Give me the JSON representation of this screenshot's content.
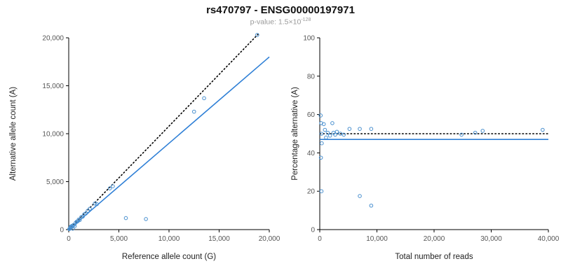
{
  "header": {
    "title": "rs470797 - ENSG00000197971",
    "subtitle_prefix": "p-value: 1.5×10",
    "subtitle_exponent": "-128"
  },
  "style": {
    "point_color": "#4a90cf",
    "trend_color": "#2e7fd6",
    "dotted_color": "#000000",
    "axis_color": "#000000",
    "tick_label_color": "#555555"
  },
  "chart_data": [
    {
      "type": "scatter",
      "name": "alt-vs-ref-allele-count",
      "xlabel": "Reference allele count (G)",
      "ylabel": "Alternative allele count (A)",
      "xlim": [
        0,
        20000
      ],
      "ylim": [
        0,
        20000
      ],
      "xticks": [
        0,
        5000,
        10000,
        15000,
        20000
      ],
      "yticks": [
        0,
        5000,
        10000,
        15000,
        20000
      ],
      "grid": false,
      "points": [
        [
          60,
          60
        ],
        [
          100,
          110
        ],
        [
          150,
          140
        ],
        [
          200,
          300
        ],
        [
          250,
          240
        ],
        [
          300,
          375
        ],
        [
          350,
          330
        ],
        [
          400,
          100
        ],
        [
          450,
          460
        ],
        [
          500,
          480
        ],
        [
          600,
          360
        ],
        [
          700,
          720
        ],
        [
          800,
          830
        ],
        [
          900,
          870
        ],
        [
          1000,
          1050
        ],
        [
          1100,
          1000
        ],
        [
          1250,
          1300
        ],
        [
          1400,
          1360
        ],
        [
          1550,
          1600
        ],
        [
          1700,
          1680
        ],
        [
          1900,
          1970
        ],
        [
          2100,
          2180
        ],
        [
          2600,
          2720
        ],
        [
          2800,
          2650
        ],
        [
          4100,
          4300
        ],
        [
          4400,
          4520
        ],
        [
          5700,
          1200
        ],
        [
          7700,
          1100
        ],
        [
          12500,
          12300
        ],
        [
          13500,
          13700
        ],
        [
          18800,
          20300
        ]
      ],
      "lines": [
        {
          "name": "identity-dotted-line",
          "x1": 0,
          "y1": 0,
          "x2": 19000,
          "y2": 20500,
          "style": "dotted",
          "color": "#000000"
        },
        {
          "name": "regression-line",
          "x1": 0,
          "y1": 0,
          "x2": 20000,
          "y2": 18000,
          "style": "solid",
          "color": "#2e7fd6"
        }
      ]
    },
    {
      "type": "scatter",
      "name": "percentage-vs-total-reads",
      "xlabel": "Total number of reads",
      "ylabel": "Percentage alternative (A)",
      "xlim": [
        0,
        40000
      ],
      "ylim": [
        0,
        100
      ],
      "xticks": [
        0,
        10000,
        20000,
        30000,
        40000
      ],
      "yticks": [
        0,
        20,
        40,
        60,
        80,
        100
      ],
      "grid": false,
      "points": [
        [
          150,
          59.5
        ],
        [
          250,
          55.5
        ],
        [
          300,
          50
        ],
        [
          350,
          45
        ],
        [
          200,
          37.5
        ],
        [
          300,
          20
        ],
        [
          700,
          55
        ],
        [
          900,
          52
        ],
        [
          1100,
          48
        ],
        [
          1400,
          50.5
        ],
        [
          1800,
          49
        ],
        [
          2200,
          55.5
        ],
        [
          2400,
          50.5
        ],
        [
          2700,
          49.5
        ],
        [
          3000,
          51
        ],
        [
          3600,
          50
        ],
        [
          4200,
          49.5
        ],
        [
          5200,
          52.5
        ],
        [
          7000,
          52.5
        ],
        [
          7000,
          17.5
        ],
        [
          9000,
          52.5
        ],
        [
          9000,
          12.5
        ],
        [
          24800,
          49.5
        ],
        [
          27200,
          50.5
        ],
        [
          28500,
          51.5
        ],
        [
          39000,
          52
        ]
      ],
      "lines": [
        {
          "name": "fifty-percent-dotted-line",
          "x1": 0,
          "y1": 50,
          "x2": 40000,
          "y2": 50,
          "style": "dotted",
          "color": "#000000"
        },
        {
          "name": "mean-percentage-line",
          "x1": 0,
          "y1": 47,
          "x2": 40000,
          "y2": 47,
          "style": "solid",
          "color": "#2e7fd6"
        }
      ]
    }
  ]
}
